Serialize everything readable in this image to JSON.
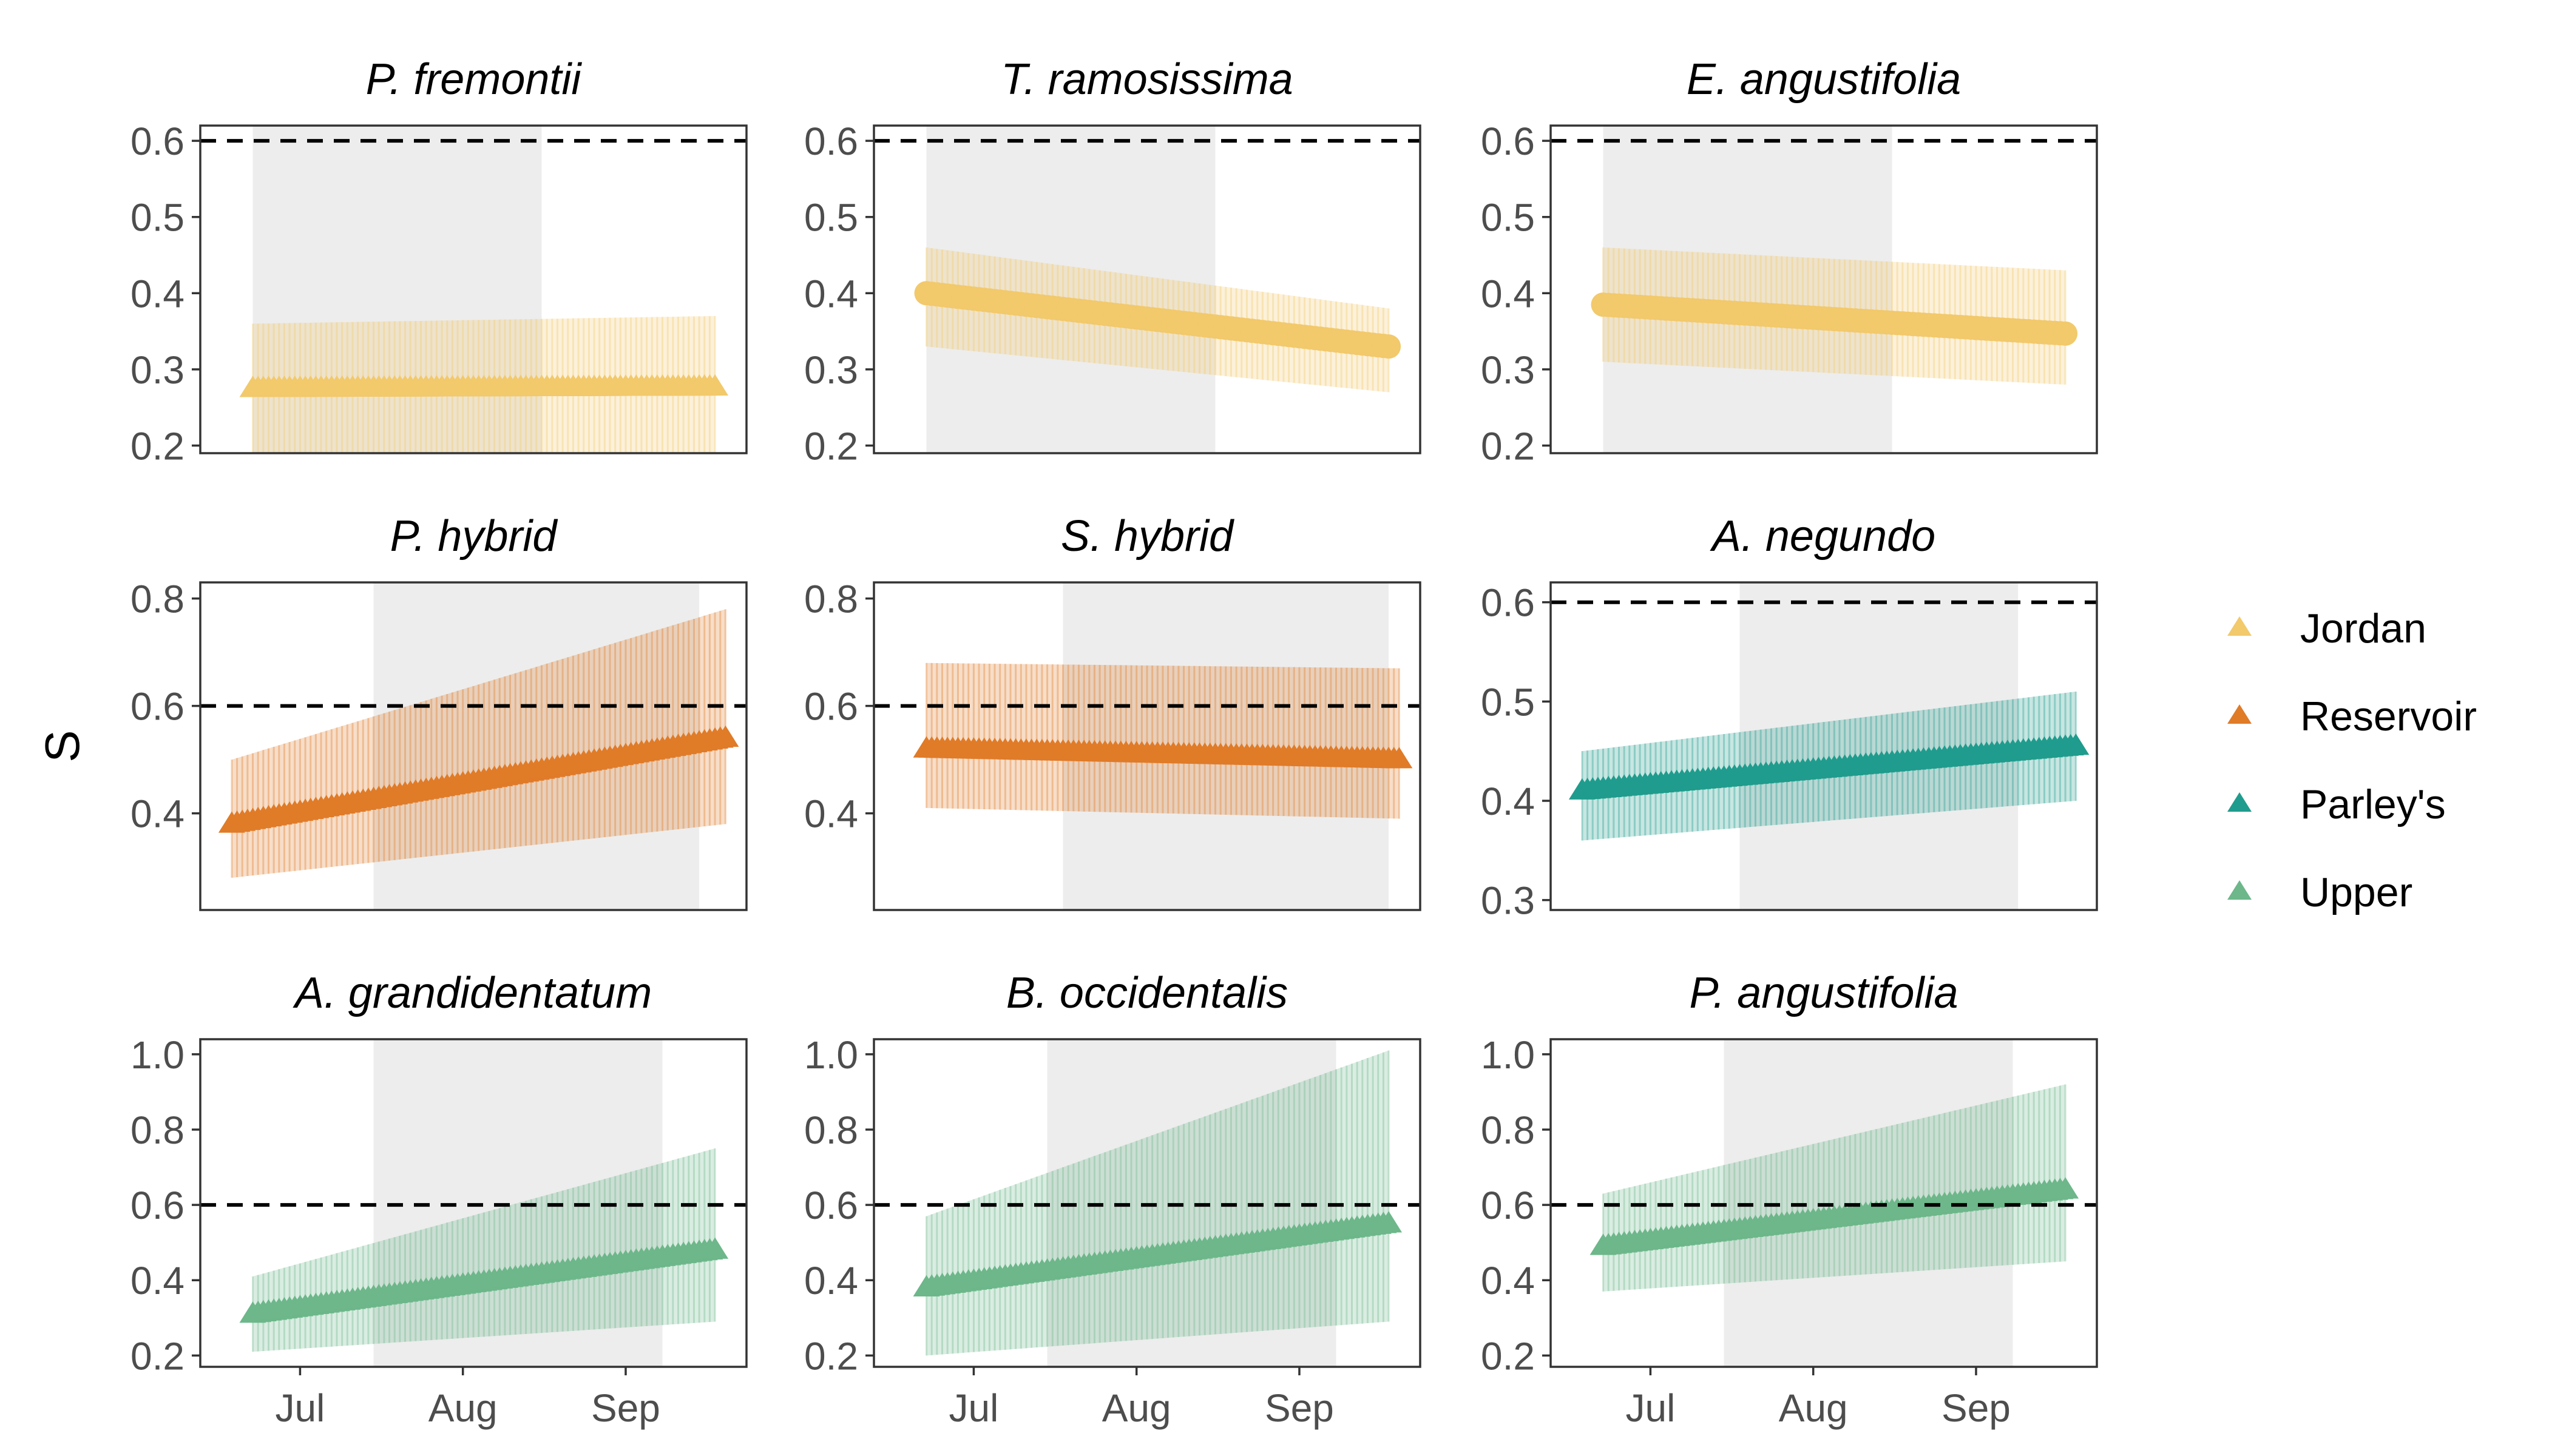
{
  "chart_data": {
    "type": "line",
    "ylabel": "S",
    "xlabel": "",
    "x_ticks": [
      "Jul",
      "Aug",
      "Sep"
    ],
    "threshold": 0.6,
    "legend": {
      "position": "right",
      "entries": [
        {
          "name": "Jordan",
          "color": "#F2C96B"
        },
        {
          "name": "Reservoir",
          "color": "#E07B28"
        },
        {
          "name": "Parley's",
          "color": "#1F9C8D"
        },
        {
          "name": "Upper",
          "color": "#6DB78A"
        }
      ]
    },
    "panels": [
      {
        "title": "P. fremontii",
        "group": "Jordan",
        "marker": "triangle",
        "ylim": [
          0.19,
          0.62
        ],
        "yticks": [
          "0.2",
          "0.3",
          "0.4",
          "0.5",
          "0.6"
        ],
        "shade": [
          "2023-06-22",
          "2023-08-16"
        ],
        "start": "2023-06-22",
        "end": "2023-09-18",
        "mean": [
          0.275,
          0.277
        ],
        "lower": [
          0.18,
          0.18
        ],
        "upper": [
          0.36,
          0.37
        ]
      },
      {
        "title": "T. ramosissima",
        "group": "Jordan",
        "marker": "circle",
        "ylim": [
          0.19,
          0.62
        ],
        "yticks": [
          "0.2",
          "0.3",
          "0.4",
          "0.5",
          "0.6"
        ],
        "shade": [
          "2023-06-22",
          "2023-08-16"
        ],
        "start": "2023-06-22",
        "end": "2023-09-18",
        "mean": [
          0.4,
          0.33
        ],
        "lower": [
          0.33,
          0.27
        ],
        "upper": [
          0.46,
          0.38
        ]
      },
      {
        "title": "E. angustifolia",
        "group": "Jordan",
        "marker": "circle",
        "ylim": [
          0.19,
          0.62
        ],
        "yticks": [
          "0.2",
          "0.3",
          "0.4",
          "0.5",
          "0.6"
        ],
        "shade": [
          "2023-06-22",
          "2023-08-16"
        ],
        "start": "2023-06-22",
        "end": "2023-09-18",
        "mean": [
          0.385,
          0.347
        ],
        "lower": [
          0.31,
          0.28
        ],
        "upper": [
          0.46,
          0.43
        ]
      },
      {
        "title": "P. hybrid",
        "group": "Reservoir",
        "marker": "triangle",
        "ylim": [
          0.22,
          0.83
        ],
        "yticks": [
          "0.4",
          "0.6",
          "0.8"
        ],
        "shade": [
          "2023-07-15",
          "2023-09-15"
        ],
        "start": "2023-06-18",
        "end": "2023-09-20",
        "mean": [
          0.38,
          0.54
        ],
        "lower": [
          0.28,
          0.38
        ],
        "upper": [
          0.5,
          0.78
        ]
      },
      {
        "title": "S. hybrid",
        "group": "Reservoir",
        "marker": "triangle",
        "ylim": [
          0.22,
          0.83
        ],
        "yticks": [
          "0.4",
          "0.6",
          "0.8"
        ],
        "shade": [
          "2023-07-18",
          "2023-09-18"
        ],
        "start": "2023-06-22",
        "end": "2023-09-20",
        "mean": [
          0.52,
          0.5
        ],
        "lower": [
          0.41,
          0.39
        ],
        "upper": [
          0.68,
          0.67
        ]
      },
      {
        "title": "A. negundo",
        "group": "Parley's",
        "marker": "triangle",
        "ylim": [
          0.29,
          0.62
        ],
        "yticks": [
          "0.3",
          "0.4",
          "0.5",
          "0.6"
        ],
        "shade": [
          "2023-07-18",
          "2023-09-09"
        ],
        "start": "2023-06-18",
        "end": "2023-09-20",
        "mean": [
          0.41,
          0.455
        ],
        "lower": [
          0.36,
          0.4
        ],
        "upper": [
          0.45,
          0.51
        ]
      },
      {
        "title": "A. grandidentatum",
        "group": "Upper",
        "marker": "triangle",
        "ylim": [
          0.17,
          1.04
        ],
        "yticks": [
          "0.2",
          "0.4",
          "0.6",
          "0.8",
          "1.0"
        ],
        "shade": [
          "2023-07-15",
          "2023-09-08"
        ],
        "start": "2023-06-22",
        "end": "2023-09-18",
        "mean": [
          0.31,
          0.48
        ],
        "lower": [
          0.21,
          0.29
        ],
        "upper": [
          0.41,
          0.75
        ]
      },
      {
        "title": "B. occidentalis",
        "group": "Upper",
        "marker": "triangle",
        "ylim": [
          0.17,
          1.04
        ],
        "yticks": [
          "0.2",
          "0.4",
          "0.6",
          "0.8",
          "1.0"
        ],
        "shade": [
          "2023-07-15",
          "2023-09-08"
        ],
        "start": "2023-06-22",
        "end": "2023-09-18",
        "mean": [
          0.38,
          0.55
        ],
        "lower": [
          0.2,
          0.29
        ],
        "upper": [
          0.57,
          1.01
        ]
      },
      {
        "title": "P. angustifolia",
        "group": "Upper",
        "marker": "triangle",
        "ylim": [
          0.17,
          1.04
        ],
        "yticks": [
          "0.2",
          "0.4",
          "0.6",
          "0.8",
          "1.0"
        ],
        "shade": [
          "2023-07-15",
          "2023-09-08"
        ],
        "start": "2023-06-22",
        "end": "2023-09-18",
        "mean": [
          0.49,
          0.64
        ],
        "lower": [
          0.37,
          0.45
        ],
        "upper": [
          0.63,
          0.92
        ]
      }
    ]
  }
}
